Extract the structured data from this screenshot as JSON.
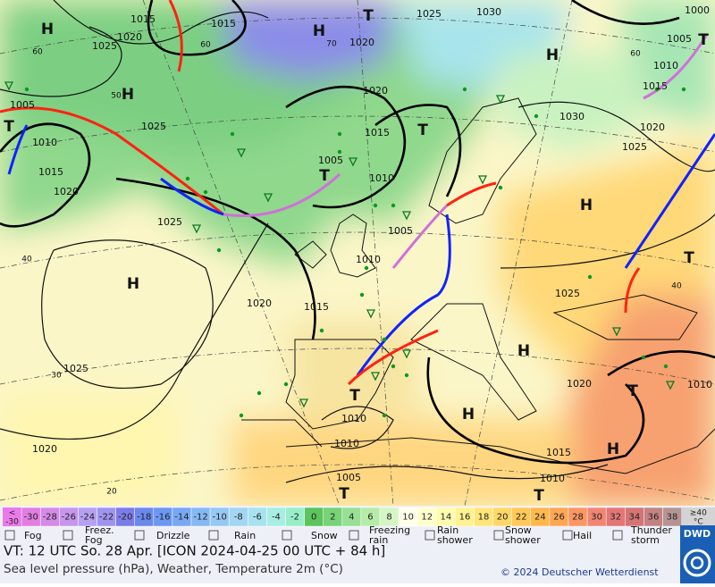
{
  "map": {
    "labels": [
      "1015",
      "1015",
      "1020",
      "1025",
      "1020",
      "1025",
      "1030",
      "1000",
      "1005",
      "1010",
      "1015",
      "1020",
      "1005",
      "1010",
      "1025",
      "1015",
      "1030",
      "1020",
      "1025",
      "1005",
      "1015",
      "1010",
      "1020",
      "1025",
      "1005",
      "1010",
      "1020",
      "1015",
      "1025",
      "1025",
      "1020",
      "1010",
      "1010",
      "1010",
      "1020",
      "1015",
      "1010",
      "1005",
      "H",
      "H",
      "T",
      "H",
      "T",
      "T",
      "H",
      "T",
      "H",
      "H",
      "T",
      "T",
      "H",
      "T",
      "H",
      "H",
      "T",
      "T",
      "T",
      "60",
      "50",
      "40",
      "30",
      "20",
      "70",
      "60",
      "60",
      "40"
    ]
  },
  "legend": {
    "low": [
      "<",
      "-30"
    ],
    "scale": [
      {
        "label": "-30",
        "color": "#e27de2"
      },
      {
        "label": "-28",
        "color": "#d48ae8"
      },
      {
        "label": "-26",
        "color": "#c696ee"
      },
      {
        "label": "-24",
        "color": "#b6a0f2"
      },
      {
        "label": "-22",
        "color": "#9e94f0"
      },
      {
        "label": "-20",
        "color": "#7c7ce6"
      },
      {
        "label": "-18",
        "color": "#6a88ee"
      },
      {
        "label": "-16",
        "color": "#6c98f2"
      },
      {
        "label": "-14",
        "color": "#78a8f4"
      },
      {
        "label": "-12",
        "color": "#86b8f4"
      },
      {
        "label": "-10",
        "color": "#96c8f4"
      },
      {
        "label": "-8",
        "color": "#a2d6f2"
      },
      {
        "label": "-6",
        "color": "#a8e2f0"
      },
      {
        "label": "-4",
        "color": "#a8eee2"
      },
      {
        "label": "-2",
        "color": "#98eec8"
      },
      {
        "label": "0",
        "color": "#5cc45c"
      },
      {
        "label": "2",
        "color": "#78d278"
      },
      {
        "label": "4",
        "color": "#98e094"
      },
      {
        "label": "6",
        "color": "#b6ecaa"
      },
      {
        "label": "8",
        "color": "#d4f6c4"
      },
      {
        "label": "10",
        "color": "#ffffea"
      },
      {
        "label": "12",
        "color": "#ffffcc"
      },
      {
        "label": "14",
        "color": "#fffcae"
      },
      {
        "label": "16",
        "color": "#fff290"
      },
      {
        "label": "18",
        "color": "#ffe67a"
      },
      {
        "label": "20",
        "color": "#ffd868"
      },
      {
        "label": "22",
        "color": "#ffc858"
      },
      {
        "label": "24",
        "color": "#ffb84c"
      },
      {
        "label": "26",
        "color": "#ffa654"
      },
      {
        "label": "28",
        "color": "#fc9662"
      },
      {
        "label": "30",
        "color": "#f28672"
      },
      {
        "label": "32",
        "color": "#e47676"
      },
      {
        "label": "34",
        "color": "#d47474"
      },
      {
        "label": "36",
        "color": "#c48282"
      },
      {
        "label": "38",
        "color": "#b69494"
      }
    ],
    "high": [
      "≥40",
      "°C"
    ],
    "symbols": [
      [
        "Fog"
      ],
      [
        "Freez.",
        "Fog"
      ],
      [
        "Drizzle"
      ],
      [
        "Rain"
      ],
      [
        "Snow"
      ],
      [
        "Freezing",
        "rain"
      ],
      [
        "Rain",
        "shower"
      ],
      [
        "Snow",
        "shower"
      ],
      [
        "Hail"
      ],
      [
        "Thunder",
        "storm"
      ]
    ]
  },
  "footer": {
    "valid_time": "VT: 12 UTC So.  28 Apr. [ICON 2024-04-25  00 UTC + 84 h]",
    "description": "Sea level pressure (hPa), Weather, Temperature 2m (°C)",
    "copyright": "© 2024 Deutscher Wetterdienst",
    "logo": "DWD"
  }
}
